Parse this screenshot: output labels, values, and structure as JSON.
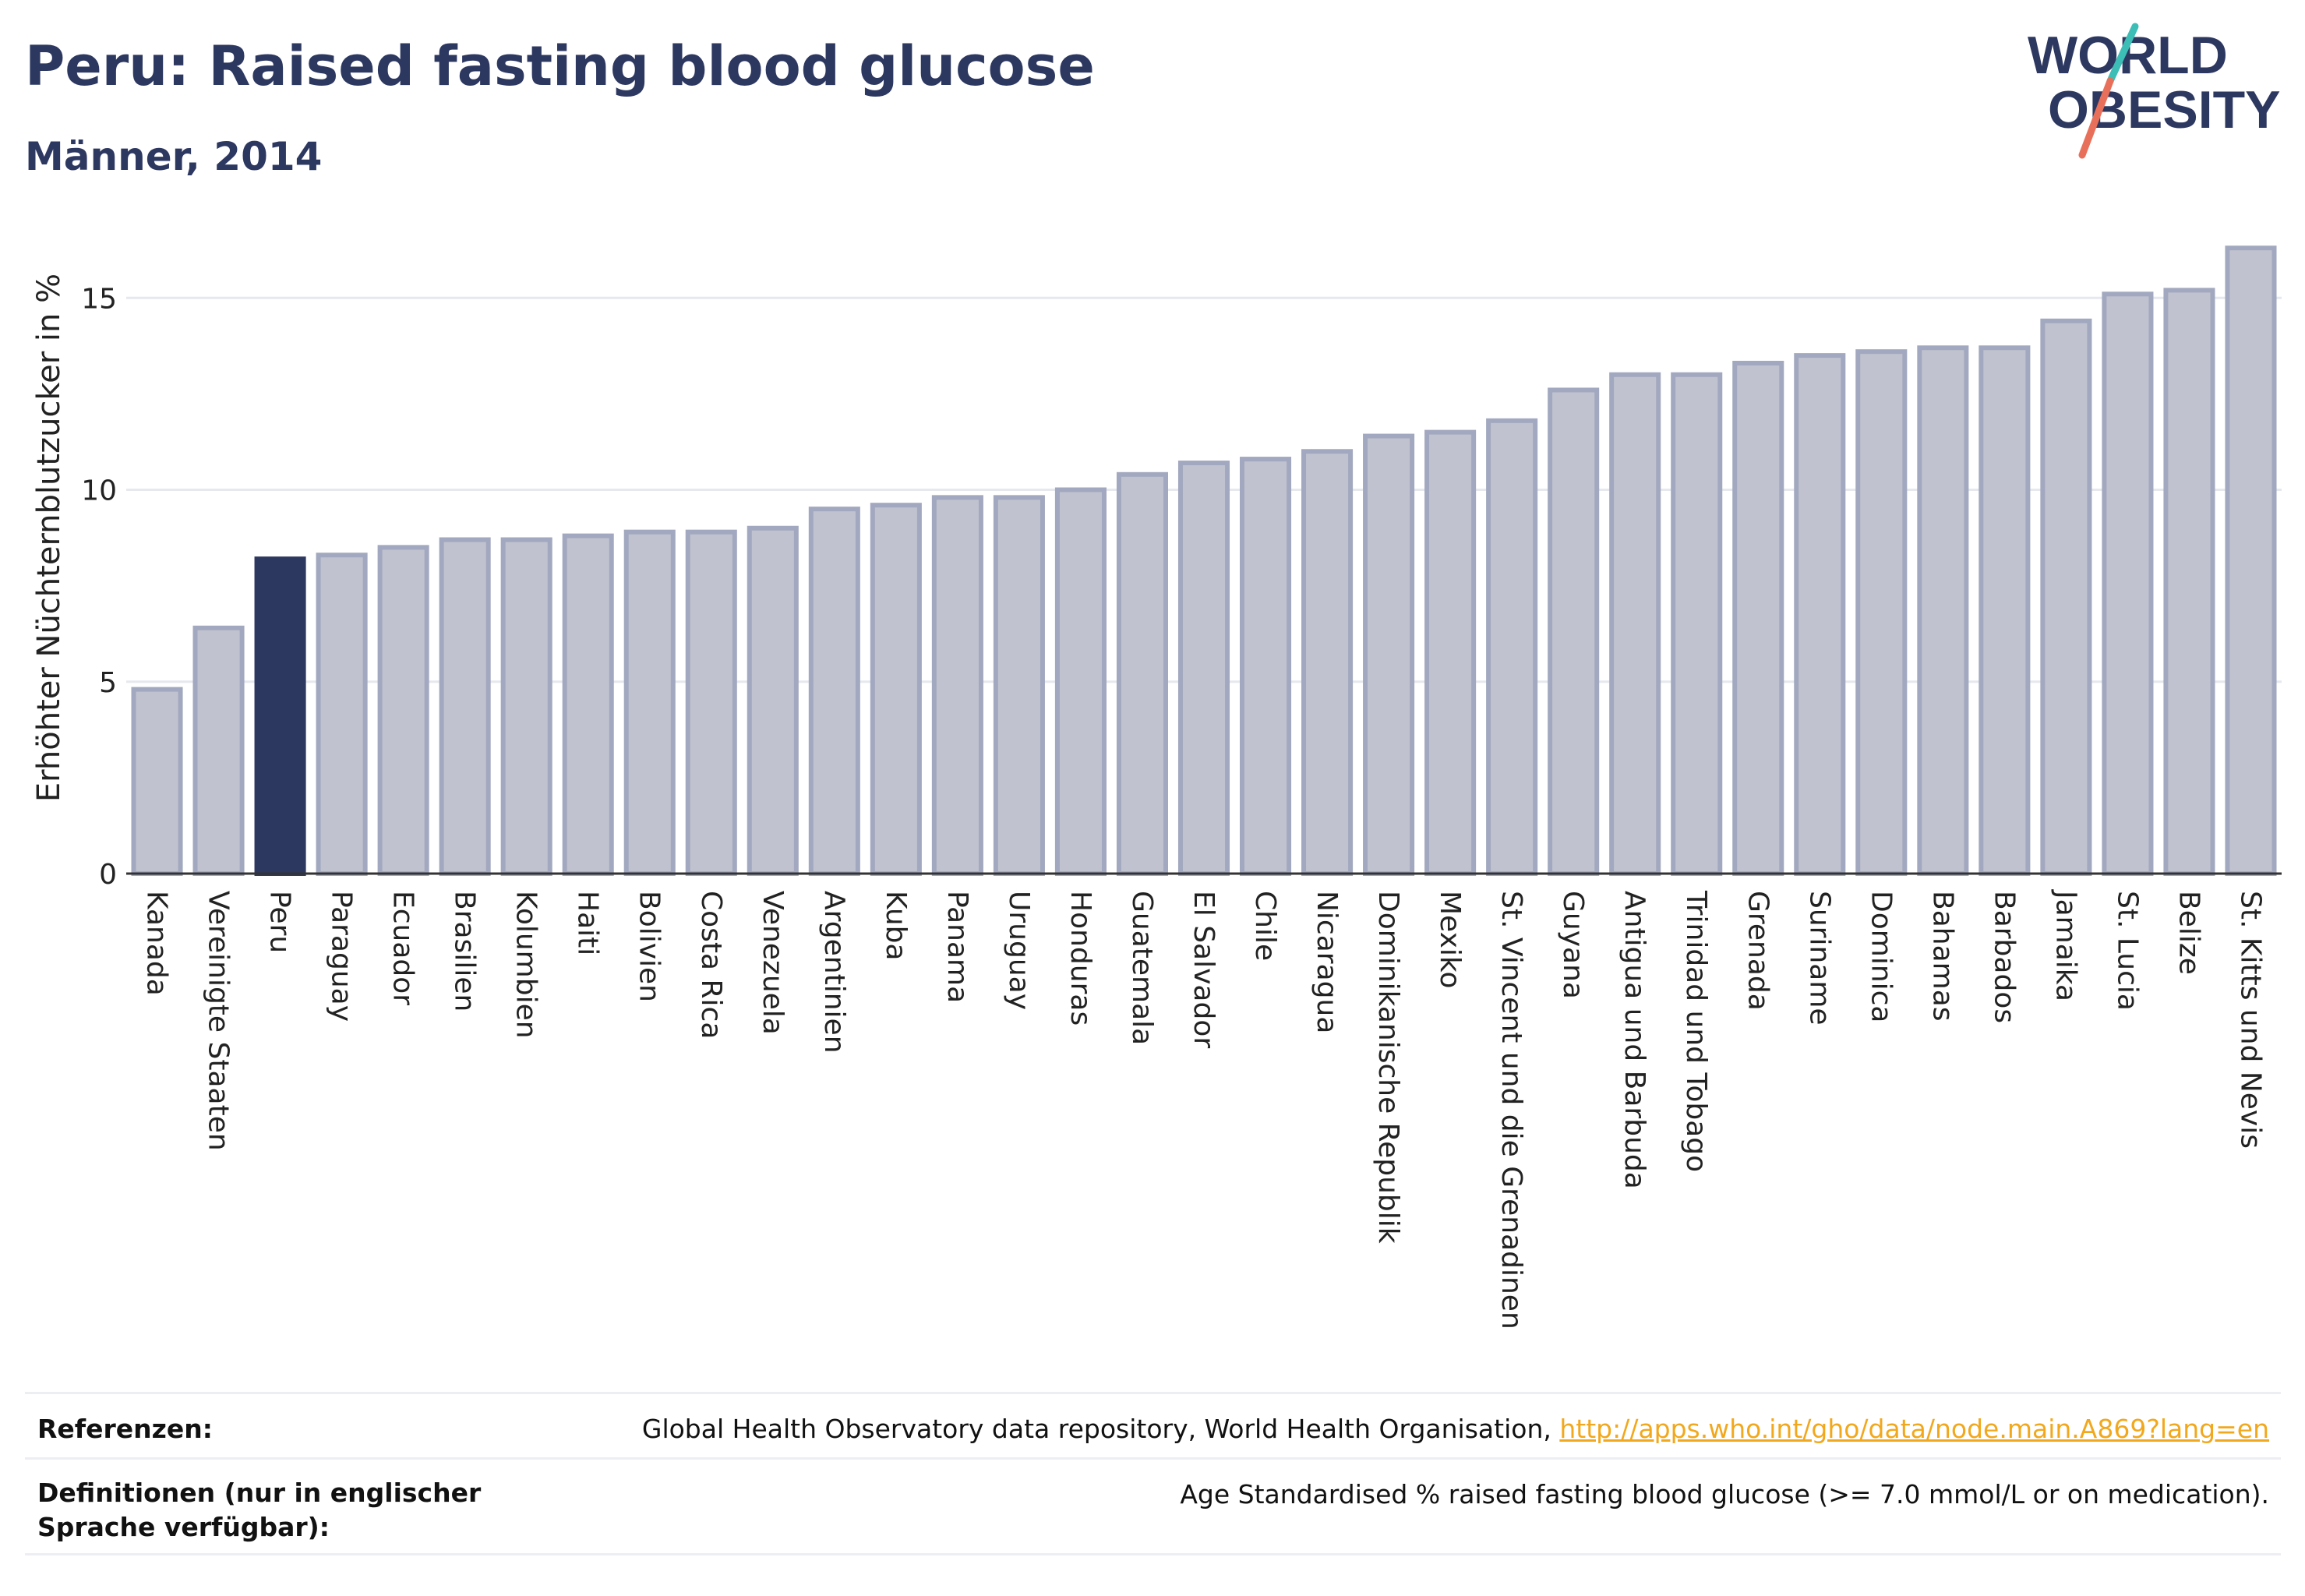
{
  "header": {
    "title": "Peru: Raised fasting blood glucose",
    "subtitle": "Männer, 2014"
  },
  "logo": {
    "line1": "WORLD",
    "line2": "OBESITY",
    "text_color": "#2d3861",
    "slash_top_color": "#3cbdb6",
    "slash_bottom_color": "#e8705a"
  },
  "chart_data": {
    "type": "bar",
    "title": "",
    "xlabel": "",
    "ylabel": "Erhöhter Nüchternblutzucker in %",
    "ylim": [
      0,
      16.5
    ],
    "yticks": [
      0,
      5,
      10,
      15
    ],
    "grid": true,
    "highlight": "Peru",
    "colors": {
      "default_bar": "#c0c3cf",
      "default_border": "#a2a8bf",
      "highlight_bar": "#2d3861",
      "grid": "#e6e8ee",
      "axis": "#333333"
    },
    "categories": [
      "Kanada",
      "Vereinigte Staaten",
      "Peru",
      "Paraguay",
      "Ecuador",
      "Brasilien",
      "Kolumbien",
      "Haiti",
      "Bolivien",
      "Costa Rica",
      "Venezuela",
      "Argentinien",
      "Kuba",
      "Panama",
      "Uruguay",
      "Honduras",
      "Guatemala",
      "El Salvador",
      "Chile",
      "Nicaragua",
      "Dominikanische Republik",
      "Mexiko",
      "St. Vincent und die Grenadinen",
      "Guyana",
      "Antigua und Barbuda",
      "Trinidad und Tobago",
      "Grenada",
      "Suriname",
      "Dominica",
      "Bahamas",
      "Barbados",
      "Jamaika",
      "St. Lucia",
      "Belize",
      "St. Kitts und Nevis"
    ],
    "values": [
      4.8,
      6.4,
      8.2,
      8.3,
      8.5,
      8.7,
      8.7,
      8.8,
      8.9,
      8.9,
      9.0,
      9.5,
      9.6,
      9.8,
      9.8,
      10.0,
      10.4,
      10.7,
      10.8,
      11.0,
      11.4,
      11.5,
      11.8,
      12.6,
      13.0,
      13.0,
      13.3,
      13.5,
      13.6,
      13.7,
      13.7,
      14.4,
      15.1,
      15.2,
      16.3
    ]
  },
  "footer": {
    "references_label": "Referenzen:",
    "references_text": "Global Health Observatory data repository, World Health Organisation, ",
    "references_link": "http://apps.who.int/gho/data/node.main.A869?lang=en",
    "definitions_label": "Definitionen (nur in englischer Sprache verfügbar):",
    "definitions_text": "Age Standardised % raised fasting blood glucose (>= 7.0 mmol/L or on medication)."
  }
}
